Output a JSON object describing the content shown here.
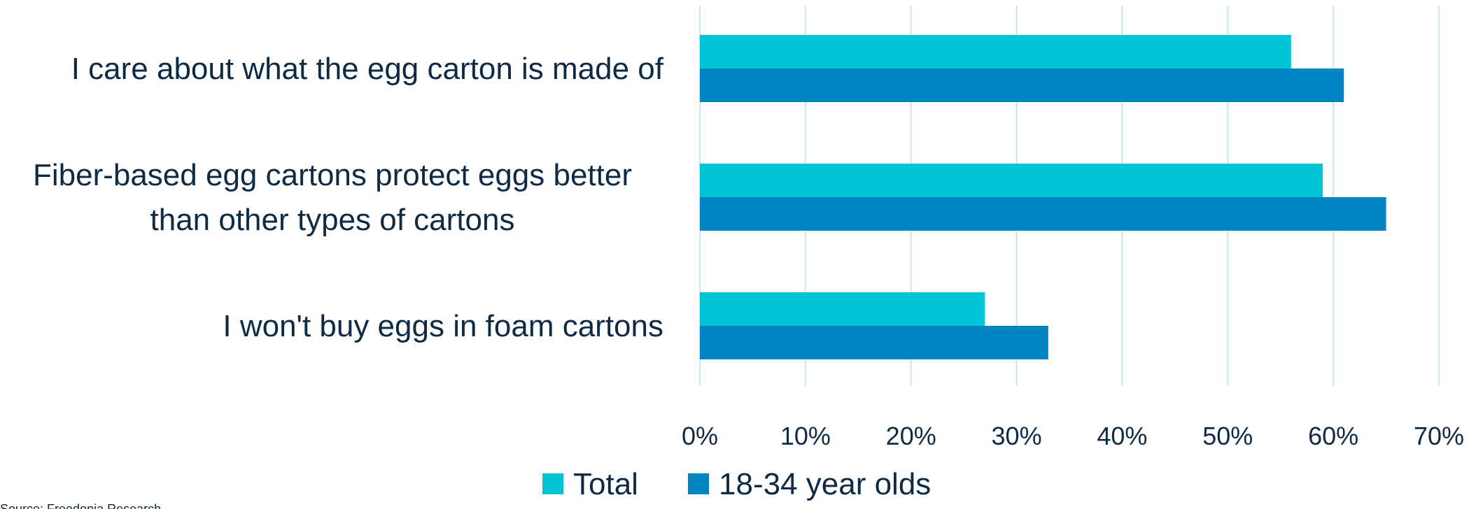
{
  "chart_data": {
    "type": "bar",
    "orientation": "horizontal",
    "categories": [
      "I care about what the egg carton is made of",
      "Fiber-based egg cartons protect eggs better than other types of cartons",
      "I won't buy eggs in foam cartons"
    ],
    "category_lines": [
      [
        "I care about what the egg carton is made of"
      ],
      [
        "Fiber-based egg cartons protect eggs better",
        "than other types of cartons"
      ],
      [
        "I won't buy eggs in foam cartons"
      ]
    ],
    "series": [
      {
        "name": "Total",
        "color": "#00c5d4",
        "values": [
          0.56,
          0.59,
          0.27
        ]
      },
      {
        "name": "18-34 year olds",
        "color": "#0085c2",
        "values": [
          0.61,
          0.65,
          0.33
        ]
      }
    ],
    "x_ticks": [
      0,
      0.1,
      0.2,
      0.3,
      0.4,
      0.5,
      0.6,
      0.7
    ],
    "x_tick_labels": [
      "0%",
      "10%",
      "20%",
      "30%",
      "40%",
      "50%",
      "60%",
      "70%"
    ],
    "xlim": [
      0,
      0.7
    ],
    "grid": true,
    "gridline_color": "#c9e6f7",
    "legend_position": "bottom-center",
    "title": "",
    "xlabel": "",
    "ylabel": "",
    "source_note": "Source: Freedonia Research"
  }
}
